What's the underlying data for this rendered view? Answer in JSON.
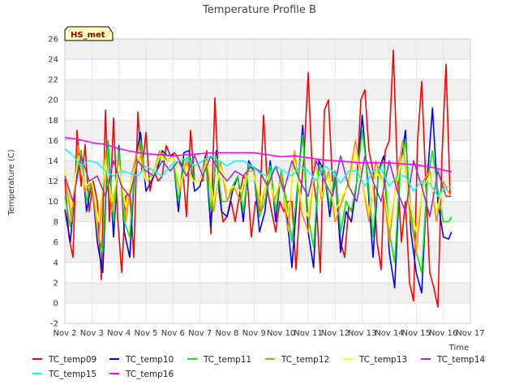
{
  "chart_data": {
    "type": "line",
    "title": "Temperature Profile B",
    "xlabel": "Time",
    "ylabel": "Temperature (C)",
    "badge": "HS_met",
    "xlim": [
      0,
      15
    ],
    "ylim": [
      -2,
      26
    ],
    "yticks": [
      -2,
      0,
      2,
      4,
      6,
      8,
      10,
      12,
      14,
      16,
      18,
      20,
      22,
      24,
      26
    ],
    "xticks": [
      "Nov 2",
      "Nov 3",
      "Nov 4",
      "Nov 5",
      "Nov 6",
      "Nov 7",
      "Nov 8",
      "Nov 9",
      "Nov 10",
      "Nov 11",
      "Nov 12",
      "Nov 13",
      "Nov 14",
      "Nov 15",
      "Nov 16",
      "Nov 17"
    ],
    "x_units": "days since Nov 2",
    "grid": true,
    "legend_placement": "bottom",
    "series": [
      {
        "name": "TC_temp09",
        "color": "#ff0000",
        "x": [
          0.0,
          0.15,
          0.3,
          0.45,
          0.6,
          0.75,
          0.9,
          1.05,
          1.2,
          1.35,
          1.5,
          1.65,
          1.8,
          1.95,
          2.1,
          2.25,
          2.4,
          2.55,
          2.7,
          2.85,
          3.0,
          3.15,
          3.3,
          3.45,
          3.6,
          3.75,
          3.9,
          4.05,
          4.2,
          4.35,
          4.5,
          4.65,
          4.8,
          4.95,
          5.1,
          5.25,
          5.4,
          5.55,
          5.7,
          5.85,
          6.0,
          6.15,
          6.3,
          6.45,
          6.6,
          6.75,
          6.9,
          7.05,
          7.2,
          7.35,
          7.5,
          7.65,
          7.8,
          7.95,
          8.1,
          8.25,
          8.4,
          8.55,
          8.7,
          8.85,
          9.0,
          9.15,
          9.3,
          9.45,
          9.6,
          9.75,
          9.9,
          10.05,
          10.2,
          10.35,
          10.5,
          10.65,
          10.8,
          10.95,
          11.1,
          11.25,
          11.4,
          11.55,
          11.7,
          11.85,
          12.0,
          12.15,
          12.3,
          12.45,
          12.6,
          12.75,
          12.9,
          13.05,
          13.2,
          13.35,
          13.5,
          13.65,
          13.8,
          13.95,
          14.1,
          14.25
        ],
        "y": [
          12.2,
          6.5,
          4.5,
          17.0,
          11.5,
          15.6,
          9.0,
          12.0,
          10.0,
          2.3,
          19.0,
          8.0,
          18.2,
          8.5,
          3.0,
          10.5,
          11.0,
          4.5,
          18.8,
          13.0,
          16.8,
          11.0,
          13.0,
          12.0,
          12.5,
          15.5,
          14.5,
          14.8,
          14.2,
          13.5,
          8.5,
          17.0,
          12.0,
          12.0,
          12.0,
          15.0,
          6.8,
          20.2,
          11.0,
          8.0,
          8.5,
          10.0,
          8.0,
          10.5,
          12.5,
          12.0,
          6.5,
          10.0,
          9.0,
          18.5,
          11.0,
          9.0,
          7.0,
          10.0,
          9.0,
          10.0,
          10.0,
          3.3,
          10.0,
          14.5,
          22.7,
          13.0,
          10.0,
          3.0,
          19.0,
          20.0,
          12.0,
          12.0,
          6.0,
          4.5,
          9.5,
          9.0,
          12.0,
          20.0,
          21.0,
          15.0,
          13.0,
          6.0,
          3.3,
          15.0,
          16.0,
          24.9,
          13.0,
          6.0,
          10.0,
          2.0,
          0.2,
          16.0,
          21.8,
          12.0,
          3.0,
          1.5,
          -0.4,
          14.5,
          23.5,
          10.7
        ]
      },
      {
        "name": "TC_temp10",
        "color": "#0000ff",
        "x": [
          0.0,
          0.2,
          0.4,
          0.6,
          0.8,
          1.0,
          1.2,
          1.4,
          1.6,
          1.8,
          2.0,
          2.2,
          2.4,
          2.6,
          2.8,
          3.0,
          3.2,
          3.4,
          3.6,
          3.8,
          4.0,
          4.2,
          4.4,
          4.6,
          4.8,
          5.0,
          5.2,
          5.4,
          5.6,
          5.8,
          6.0,
          6.2,
          6.4,
          6.6,
          6.8,
          7.0,
          7.2,
          7.4,
          7.6,
          7.8,
          8.0,
          8.2,
          8.4,
          8.6,
          8.8,
          9.0,
          9.2,
          9.4,
          9.6,
          9.8,
          10.0,
          10.2,
          10.4,
          10.6,
          10.8,
          11.0,
          11.2,
          11.4,
          11.6,
          11.8,
          12.0,
          12.2,
          12.4,
          12.6,
          12.8,
          13.0,
          13.2,
          13.4,
          13.6,
          13.8,
          14.0,
          14.2,
          14.3
        ],
        "y": [
          9.2,
          6.0,
          12.0,
          15.0,
          9.0,
          12.0,
          6.0,
          3.0,
          16.0,
          6.5,
          15.5,
          7.0,
          4.5,
          14.0,
          16.8,
          11.0,
          12.0,
          13.0,
          15.0,
          14.5,
          14.6,
          9.0,
          14.8,
          15.0,
          11.0,
          11.5,
          14.5,
          7.5,
          15.0,
          9.0,
          8.5,
          11.0,
          12.5,
          8.0,
          14.0,
          13.0,
          7.0,
          9.0,
          14.0,
          8.0,
          13.0,
          9.0,
          3.5,
          11.0,
          17.5,
          7.0,
          3.5,
          14.0,
          13.0,
          8.5,
          13.0,
          5.0,
          9.0,
          8.0,
          12.0,
          18.5,
          12.0,
          4.5,
          13.0,
          14.5,
          5.0,
          1.5,
          13.0,
          17.0,
          7.0,
          3.0,
          1.0,
          12.0,
          19.2,
          10.0,
          6.5,
          6.3,
          7.0
        ]
      },
      {
        "name": "TC_temp11",
        "color": "#00ee00",
        "x": [
          0.0,
          0.2,
          0.4,
          0.6,
          0.8,
          1.0,
          1.2,
          1.4,
          1.6,
          1.8,
          2.0,
          2.2,
          2.4,
          2.6,
          2.8,
          3.0,
          3.2,
          3.4,
          3.6,
          3.8,
          4.0,
          4.2,
          4.4,
          4.6,
          4.8,
          5.0,
          5.2,
          5.4,
          5.6,
          5.8,
          6.0,
          6.2,
          6.4,
          6.6,
          6.8,
          7.0,
          7.2,
          7.4,
          7.6,
          7.8,
          8.0,
          8.2,
          8.4,
          8.6,
          8.8,
          9.0,
          9.2,
          9.4,
          9.6,
          9.8,
          10.0,
          10.2,
          10.4,
          10.6,
          10.8,
          11.0,
          11.2,
          11.4,
          11.6,
          11.8,
          12.0,
          12.2,
          12.4,
          12.6,
          12.8,
          13.0,
          13.2,
          13.4,
          13.6,
          13.8,
          14.0,
          14.2,
          14.3
        ],
        "y": [
          10.5,
          7.5,
          12.5,
          15.0,
          10.0,
          12.0,
          7.0,
          5.0,
          16.0,
          8.0,
          15.0,
          8.0,
          6.5,
          14.0,
          16.0,
          12.0,
          12.5,
          13.5,
          14.8,
          14.0,
          14.5,
          10.0,
          14.0,
          14.5,
          12.0,
          12.0,
          14.0,
          9.0,
          14.5,
          10.0,
          10.0,
          11.5,
          12.5,
          9.0,
          13.5,
          13.0,
          8.5,
          10.0,
          13.5,
          9.0,
          13.0,
          10.0,
          6.0,
          11.5,
          16.5,
          8.5,
          5.5,
          13.5,
          13.0,
          9.5,
          13.0,
          7.0,
          10.0,
          9.0,
          12.0,
          17.0,
          12.5,
          6.5,
          13.0,
          14.0,
          7.0,
          4.0,
          13.0,
          16.0,
          9.0,
          5.0,
          3.0,
          12.0,
          15.0,
          11.0,
          8.0,
          8.0,
          8.5
        ]
      },
      {
        "name": "TC_temp12",
        "color": "#ff8c00",
        "x": [
          0.0,
          0.25,
          0.5,
          0.75,
          1.0,
          1.25,
          1.5,
          1.75,
          2.0,
          2.25,
          2.5,
          2.75,
          3.0,
          3.25,
          3.5,
          3.75,
          4.0,
          4.25,
          4.5,
          4.75,
          5.0,
          5.25,
          5.5,
          5.75,
          6.0,
          6.25,
          6.5,
          6.75,
          7.0,
          7.25,
          7.5,
          7.75,
          8.0,
          8.25,
          8.5,
          8.75,
          9.0,
          9.25,
          9.5,
          9.75,
          10.0,
          10.25,
          10.5,
          10.75,
          11.0,
          11.25,
          11.5,
          11.75,
          12.0,
          12.25,
          12.5,
          12.75,
          13.0,
          13.25,
          13.5,
          13.75,
          14.0,
          14.25
        ],
        "y": [
          13.0,
          8.0,
          15.5,
          11.0,
          12.0,
          6.0,
          15.0,
          9.0,
          14.0,
          8.0,
          13.0,
          15.5,
          12.0,
          12.5,
          15.0,
          14.0,
          14.5,
          11.0,
          14.0,
          12.0,
          12.0,
          14.5,
          9.0,
          14.0,
          10.0,
          11.5,
          10.0,
          13.0,
          13.0,
          9.0,
          13.0,
          10.0,
          12.5,
          7.0,
          15.0,
          9.0,
          7.0,
          14.0,
          10.0,
          13.0,
          8.0,
          10.0,
          12.0,
          16.0,
          12.0,
          8.0,
          14.0,
          12.0,
          6.0,
          12.0,
          16.0,
          9.0,
          5.0,
          12.0,
          13.0,
          8.0,
          12.0,
          10.5
        ]
      },
      {
        "name": "TC_temp13",
        "color": "#ffff00",
        "x": [
          0.0,
          0.25,
          0.5,
          0.75,
          1.0,
          1.25,
          1.5,
          1.75,
          2.0,
          2.25,
          2.5,
          2.75,
          3.0,
          3.25,
          3.5,
          3.75,
          4.0,
          4.25,
          4.5,
          4.75,
          5.0,
          5.25,
          5.5,
          5.75,
          6.0,
          6.25,
          6.5,
          6.75,
          7.0,
          7.25,
          7.5,
          7.75,
          8.0,
          8.25,
          8.5,
          8.75,
          9.0,
          9.25,
          9.5,
          9.75,
          10.0,
          10.25,
          10.5,
          10.75,
          11.0,
          11.25,
          11.5,
          11.75,
          12.0,
          12.25,
          12.5,
          12.75,
          13.0,
          13.25,
          13.5,
          13.75,
          14.0,
          14.25
        ],
        "y": [
          13.0,
          9.5,
          14.5,
          11.5,
          12.0,
          8.0,
          14.0,
          10.0,
          13.5,
          9.5,
          12.5,
          14.5,
          12.0,
          12.5,
          14.5,
          14.0,
          14.3,
          11.5,
          13.5,
          12.0,
          12.0,
          14.0,
          10.0,
          13.5,
          11.0,
          11.5,
          11.0,
          12.5,
          12.5,
          10.0,
          12.5,
          10.5,
          12.0,
          8.5,
          14.0,
          10.0,
          8.5,
          13.5,
          10.5,
          12.5,
          9.0,
          10.5,
          11.5,
          15.0,
          12.0,
          9.0,
          13.0,
          12.0,
          7.5,
          11.5,
          14.5,
          10.0,
          7.0,
          11.5,
          12.5,
          9.0,
          11.5,
          10.5
        ]
      },
      {
        "name": "TC_temp14",
        "color": "#9932cc",
        "x": [
          0.0,
          0.3,
          0.6,
          0.9,
          1.2,
          1.5,
          1.8,
          2.1,
          2.4,
          2.7,
          3.0,
          3.3,
          3.6,
          3.9,
          4.2,
          4.5,
          4.8,
          5.1,
          5.4,
          5.7,
          6.0,
          6.3,
          6.6,
          6.9,
          7.2,
          7.5,
          7.8,
          8.1,
          8.4,
          8.7,
          9.0,
          9.3,
          9.6,
          9.9,
          10.2,
          10.5,
          10.8,
          11.1,
          11.4,
          11.7,
          12.0,
          12.3,
          12.6,
          12.9,
          13.2,
          13.5,
          13.8,
          14.1,
          14.3
        ],
        "y": [
          12.5,
          10.0,
          14.5,
          12.0,
          12.5,
          10.5,
          14.0,
          11.5,
          10.5,
          14.0,
          13.0,
          12.5,
          14.0,
          13.0,
          14.0,
          12.5,
          14.5,
          12.5,
          14.5,
          13.0,
          12.0,
          13.0,
          12.5,
          13.5,
          13.0,
          11.5,
          13.5,
          11.0,
          14.0,
          12.0,
          10.5,
          14.0,
          12.0,
          10.5,
          14.5,
          11.5,
          10.0,
          14.5,
          12.0,
          10.0,
          14.0,
          11.0,
          9.0,
          14.0,
          11.5,
          8.5,
          13.0,
          10.5,
          10.5
        ]
      },
      {
        "name": "TC_temp15",
        "color": "#00ffff",
        "x": [
          0.0,
          0.3,
          0.6,
          0.9,
          1.2,
          1.5,
          1.8,
          2.1,
          2.4,
          2.7,
          3.0,
          3.3,
          3.6,
          3.9,
          4.2,
          4.5,
          4.8,
          5.1,
          5.4,
          5.7,
          6.0,
          6.3,
          6.6,
          6.9,
          7.2,
          7.5,
          7.8,
          8.1,
          8.4,
          8.7,
          9.0,
          9.3,
          9.6,
          9.9,
          10.2,
          10.5,
          10.8,
          11.1,
          11.4,
          11.7,
          12.0,
          12.3,
          12.6,
          12.9,
          13.2,
          13.5,
          13.8,
          14.1,
          14.3
        ],
        "y": [
          15.2,
          14.5,
          13.5,
          14.0,
          13.8,
          13.0,
          12.5,
          13.0,
          12.8,
          12.5,
          13.5,
          13.0,
          12.5,
          13.5,
          14.0,
          14.2,
          13.5,
          14.0,
          14.5,
          14.0,
          13.5,
          14.0,
          14.0,
          13.5,
          12.8,
          12.5,
          13.5,
          13.0,
          12.5,
          13.5,
          13.0,
          12.0,
          13.5,
          13.0,
          11.8,
          13.0,
          13.0,
          11.5,
          13.0,
          13.2,
          11.5,
          12.5,
          12.5,
          11.0,
          12.0,
          11.8,
          10.5,
          11.5,
          11.3
        ]
      },
      {
        "name": "TC_temp16",
        "color": "#ff00ff",
        "x": [
          0.0,
          0.5,
          1.0,
          1.5,
          2.0,
          2.5,
          3.0,
          3.5,
          4.0,
          4.5,
          5.0,
          5.5,
          6.0,
          6.5,
          7.0,
          7.5,
          8.0,
          8.5,
          9.0,
          9.5,
          10.0,
          10.5,
          11.0,
          11.5,
          12.0,
          12.5,
          13.0,
          13.5,
          14.0,
          14.3
        ],
        "y": [
          16.3,
          16.1,
          15.8,
          15.6,
          15.2,
          14.9,
          14.7,
          14.6,
          14.5,
          14.6,
          14.7,
          14.8,
          14.8,
          14.8,
          14.8,
          14.6,
          14.4,
          14.5,
          14.3,
          14.1,
          14.0,
          13.9,
          13.8,
          13.8,
          13.8,
          13.7,
          13.6,
          13.4,
          13.1,
          12.9
        ]
      }
    ]
  }
}
